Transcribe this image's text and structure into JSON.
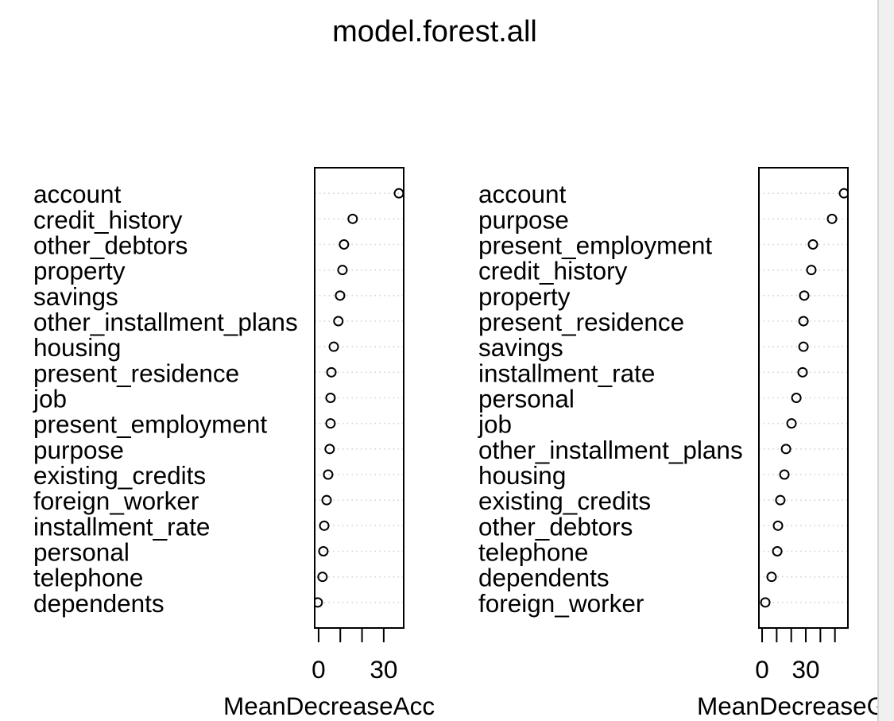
{
  "figure": {
    "title": "model.forest.all"
  },
  "colors": {
    "background": "#ffffff",
    "text": "#000000",
    "frame": "#000000",
    "point": "#000000",
    "grid": "#d3d3d3",
    "scrollbar_track": "#f0f0f0",
    "scrollbar_border": "#d6d6d6"
  },
  "chart_data": [
    {
      "type": "scatter",
      "categories": [
        "account",
        "credit_history",
        "other_debtors",
        "property",
        "savings",
        "other_installment_plans",
        "housing",
        "present_residence",
        "job",
        "present_employment",
        "purpose",
        "existing_credits",
        "foreign_worker",
        "installment_rate",
        "personal",
        "telephone",
        "dependents"
      ],
      "values": [
        37.0,
        15.7,
        11.7,
        11.0,
        9.9,
        9.1,
        7.0,
        5.9,
        5.5,
        5.5,
        5.1,
        4.4,
        3.7,
        2.6,
        2.2,
        1.8,
        -0.4
      ],
      "xlabel": "MeanDecreaseAcc",
      "xlim": [
        -1.8,
        39.2
      ],
      "xticks": [
        0,
        10,
        20,
        30
      ],
      "xtick_labels": [
        {
          "value": 0,
          "label": "0"
        },
        {
          "value": 30,
          "label": "30"
        }
      ],
      "grid": true
    },
    {
      "type": "scatter",
      "categories": [
        "account",
        "purpose",
        "present_employment",
        "credit_history",
        "property",
        "present_residence",
        "savings",
        "installment_rate",
        "personal",
        "job",
        "other_installment_plans",
        "housing",
        "existing_credits",
        "other_debtors",
        "telephone",
        "dependents",
        "foreign_worker"
      ],
      "values": [
        56.2,
        48.0,
        34.9,
        33.8,
        28.9,
        28.4,
        28.4,
        27.8,
        23.5,
        20.2,
        16.4,
        15.3,
        12.5,
        10.9,
        10.4,
        6.5,
        2.2
      ],
      "xlabel": "MeanDecreaseG",
      "xlim": [
        -2.2,
        58.9
      ],
      "xticks": [
        0,
        10,
        20,
        30,
        40,
        50
      ],
      "xtick_labels": [
        {
          "value": 0,
          "label": "0"
        },
        {
          "value": 30,
          "label": "30"
        }
      ],
      "grid": true
    }
  ]
}
